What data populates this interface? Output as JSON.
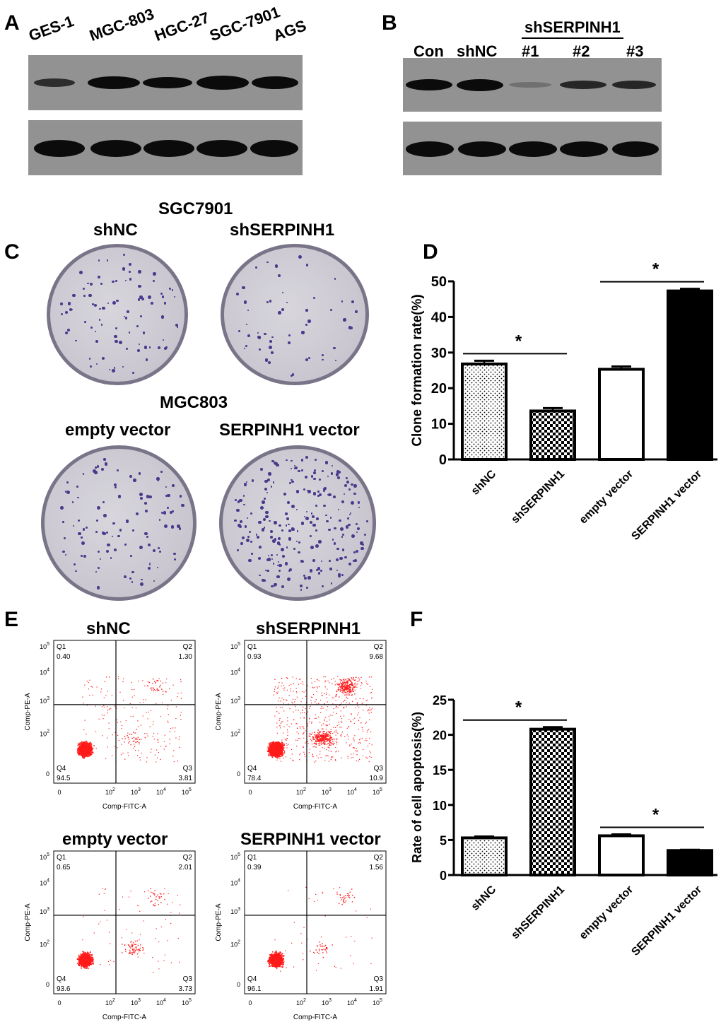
{
  "panels": {
    "A": {
      "label": "A",
      "lanes": [
        "GES-1",
        "MGC-803",
        "HGC-27",
        "SGC-7901",
        "AGS"
      ]
    },
    "B": {
      "label": "B",
      "group_label": "shSERPINH1",
      "lanes": [
        "Con",
        "shNC",
        "#1",
        "#2",
        "#3"
      ]
    },
    "C": {
      "label": "C",
      "top_title": "SGC7901",
      "top_left": "shNC",
      "top_right": "shSERPINH1",
      "bottom_title": "MGC803",
      "bottom_left": "empty vector",
      "bottom_right": "SERPINH1 vector"
    },
    "D": {
      "label": "D",
      "star1": "*",
      "star2": "*"
    },
    "E": {
      "label": "E",
      "plots": [
        {
          "title": "shNC",
          "q1": "Q1",
          "q1v": "0.40",
          "q2": "Q2",
          "q2v": "1.30",
          "q3": "Q3",
          "q3v": "3.81",
          "q4": "Q4",
          "q4v": "94.5"
        },
        {
          "title": "shSERPINH1",
          "q1": "Q1",
          "q1v": "0.93",
          "q2": "Q2",
          "q2v": "9.68",
          "q3": "Q3",
          "q3v": "10.9",
          "q4": "Q4",
          "q4v": "78.4"
        },
        {
          "title": "empty vector",
          "q1": "Q1",
          "q1v": "0.65",
          "q2": "Q2",
          "q2v": "2.01",
          "q3": "Q3",
          "q3v": "3.73",
          "q4": "Q4",
          "q4v": "93.6"
        },
        {
          "title": "SERPINH1 vector",
          "q1": "Q1",
          "q1v": "0.39",
          "q2": "Q2",
          "q2v": "1.56",
          "q3": "Q3",
          "q3v": "1.91",
          "q4": "Q4",
          "q4v": "96.1"
        }
      ],
      "xlabel": "Comp-FITC-A",
      "ylabel": "Comp-PE-A",
      "ticks": [
        "0",
        "10",
        "10",
        "10",
        "10"
      ],
      "tick_exps": [
        "",
        "2",
        "3",
        "4",
        "5"
      ]
    },
    "F": {
      "label": "F",
      "star1": "*",
      "star2": "*"
    }
  },
  "chart_data": [
    {
      "type": "bar",
      "panel": "D",
      "categories": [
        "shNC",
        "shSERPINH1",
        "empty vector",
        "SERPINH1 vector"
      ],
      "values": [
        26.8,
        13.6,
        25.3,
        47.3
      ],
      "errors": [
        0.9,
        0.8,
        0.8,
        0.6
      ],
      "ylabel": "Clone formation rate(%)",
      "ylim": [
        0,
        50
      ],
      "yticks": [
        0,
        10,
        20,
        30,
        40,
        50
      ],
      "fills": [
        "dots",
        "checker",
        "white",
        "black"
      ]
    },
    {
      "type": "bar",
      "panel": "F",
      "categories": [
        "shNC",
        "shSERPINH1",
        "empty vector",
        "SERPINH1 vector"
      ],
      "values": [
        5.3,
        20.8,
        5.6,
        3.5
      ],
      "errors": [
        0.2,
        0.3,
        0.2,
        0.1
      ],
      "ylabel": "Rate of cell apoptosis(%)",
      "ylim": [
        0,
        25
      ],
      "yticks": [
        0,
        5,
        10,
        15,
        20,
        25
      ],
      "fills": [
        "dots",
        "checker",
        "white",
        "black"
      ]
    }
  ]
}
